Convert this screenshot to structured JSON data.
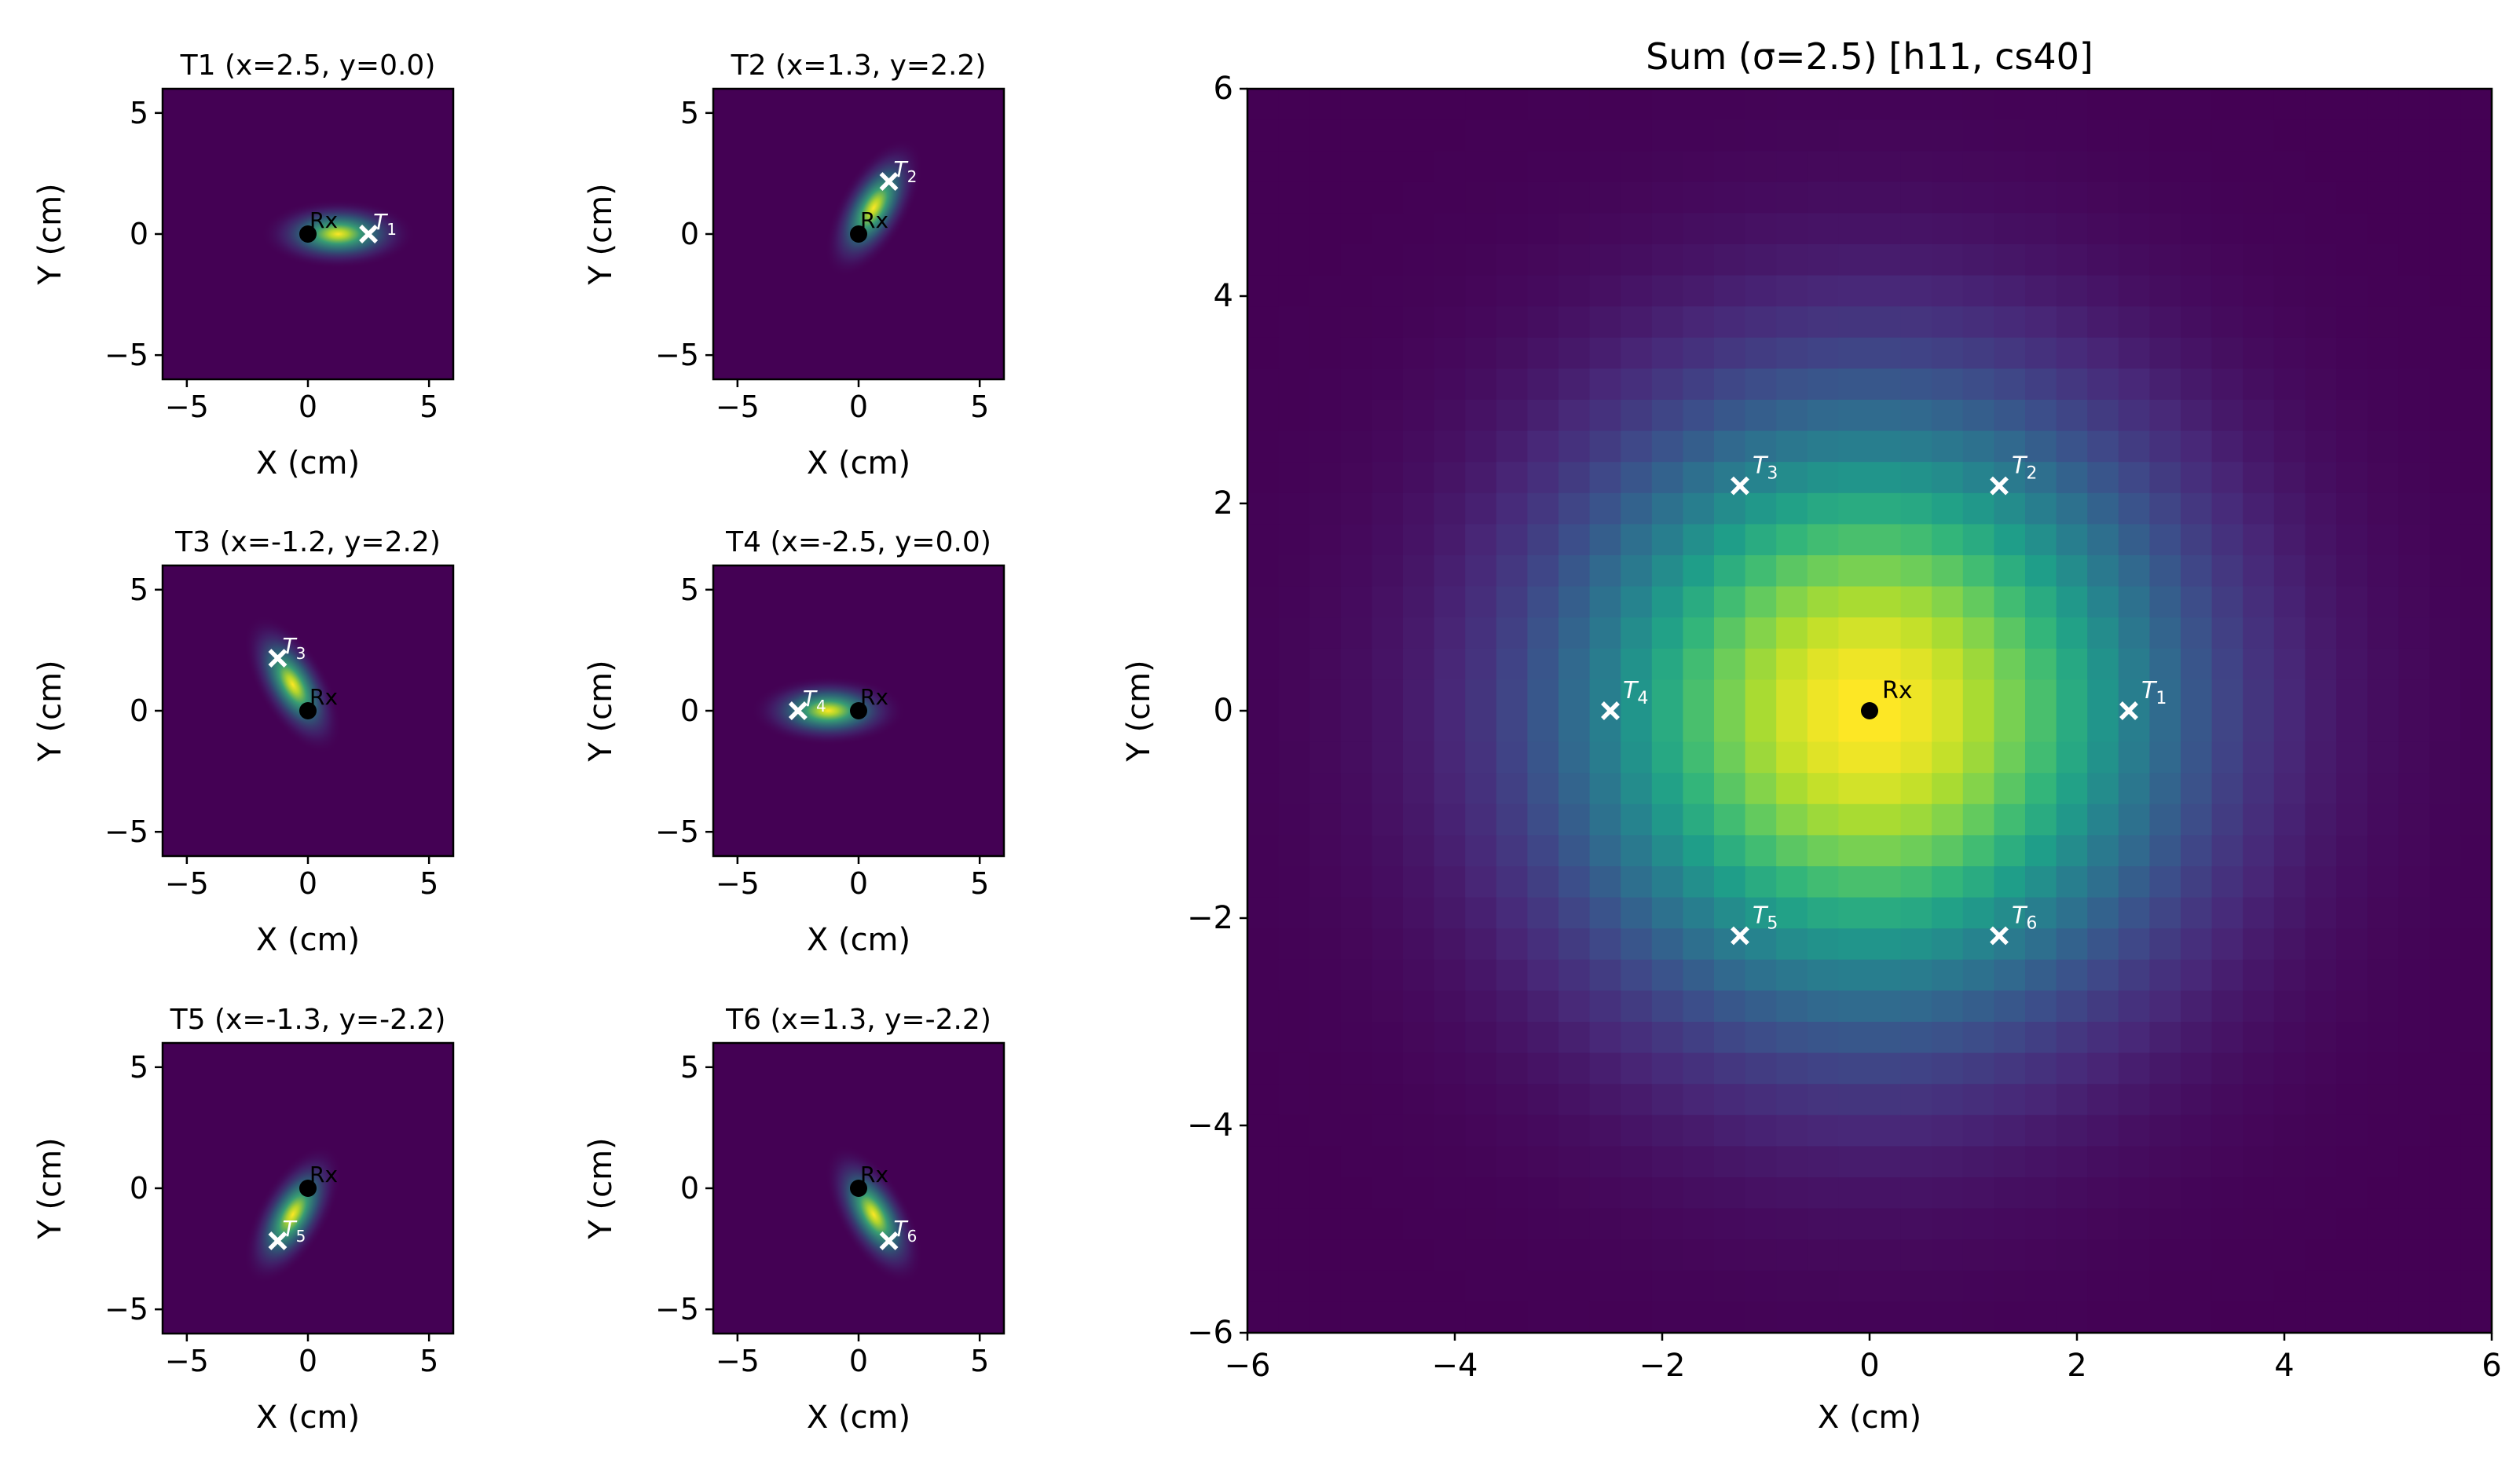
{
  "figure": {
    "background": "#ffffff"
  },
  "chart_data": [
    {
      "type": "heatmap",
      "panel": "T1",
      "title": "T1  (x=2.5, y=0.0)",
      "xlabel": "X (cm)",
      "ylabel": "Y (cm)",
      "xlim": [
        -6,
        6
      ],
      "ylim": [
        -6,
        6
      ],
      "xticks": [
        -5,
        0,
        5
      ],
      "yticks": [
        -5,
        0,
        5
      ],
      "xtick_labels": [
        "−5",
        "0",
        "5"
      ],
      "ytick_labels": [
        "−5",
        "0",
        "5"
      ],
      "colormap": "viridis",
      "rx": {
        "x": 0.0,
        "y": 0.0,
        "label": "Rx"
      },
      "transmitter": {
        "x": 2.5,
        "y": 0.0,
        "label": "T",
        "sub": "1"
      },
      "sigma_along": 1.6,
      "sigma_across": 0.55
    },
    {
      "type": "heatmap",
      "panel": "T2",
      "title": "T2  (x=1.3, y=2.2)",
      "xlabel": "X (cm)",
      "ylabel": "Y (cm)",
      "xlim": [
        -6,
        6
      ],
      "ylim": [
        -6,
        6
      ],
      "xticks": [
        -5,
        0,
        5
      ],
      "yticks": [
        -5,
        0,
        5
      ],
      "xtick_labels": [
        "−5",
        "0",
        "5"
      ],
      "ytick_labels": [
        "−5",
        "0",
        "5"
      ],
      "colormap": "viridis",
      "rx": {
        "x": 0.0,
        "y": 0.0,
        "label": "Rx"
      },
      "transmitter": {
        "x": 1.25,
        "y": 2.17,
        "label": "T",
        "sub": "2"
      },
      "sigma_along": 1.6,
      "sigma_across": 0.55
    },
    {
      "type": "heatmap",
      "panel": "T3",
      "title": "T3  (x=-1.2, y=2.2)",
      "xlabel": "X (cm)",
      "ylabel": "Y (cm)",
      "xlim": [
        -6,
        6
      ],
      "ylim": [
        -6,
        6
      ],
      "xticks": [
        -5,
        0,
        5
      ],
      "yticks": [
        -5,
        0,
        5
      ],
      "xtick_labels": [
        "−5",
        "0",
        "5"
      ],
      "ytick_labels": [
        "−5",
        "0",
        "5"
      ],
      "colormap": "viridis",
      "rx": {
        "x": 0.0,
        "y": 0.0,
        "label": "Rx"
      },
      "transmitter": {
        "x": -1.25,
        "y": 2.17,
        "label": "T",
        "sub": "3"
      },
      "sigma_along": 1.6,
      "sigma_across": 0.55
    },
    {
      "type": "heatmap",
      "panel": "T4",
      "title": "T4  (x=-2.5, y=0.0)",
      "xlabel": "X (cm)",
      "ylabel": "Y (cm)",
      "xlim": [
        -6,
        6
      ],
      "ylim": [
        -6,
        6
      ],
      "xticks": [
        -5,
        0,
        5
      ],
      "yticks": [
        -5,
        0,
        5
      ],
      "xtick_labels": [
        "−5",
        "0",
        "5"
      ],
      "ytick_labels": [
        "−5",
        "0",
        "5"
      ],
      "colormap": "viridis",
      "rx": {
        "x": 0.0,
        "y": 0.0,
        "label": "Rx"
      },
      "transmitter": {
        "x": -2.5,
        "y": 0.0,
        "label": "T",
        "sub": "4"
      },
      "sigma_along": 1.6,
      "sigma_across": 0.55
    },
    {
      "type": "heatmap",
      "panel": "T5",
      "title": "T5  (x=-1.3, y=-2.2)",
      "xlabel": "X (cm)",
      "ylabel": "Y (cm)",
      "xlim": [
        -6,
        6
      ],
      "ylim": [
        -6,
        6
      ],
      "xticks": [
        -5,
        0,
        5
      ],
      "yticks": [
        -5,
        0,
        5
      ],
      "xtick_labels": [
        "−5",
        "0",
        "5"
      ],
      "ytick_labels": [
        "−5",
        "0",
        "5"
      ],
      "colormap": "viridis",
      "rx": {
        "x": 0.0,
        "y": 0.0,
        "label": "Rx"
      },
      "transmitter": {
        "x": -1.25,
        "y": -2.17,
        "label": "T",
        "sub": "5"
      },
      "sigma_along": 1.6,
      "sigma_across": 0.55
    },
    {
      "type": "heatmap",
      "panel": "T6",
      "title": "T6  (x=1.3, y=-2.2)",
      "xlabel": "X (cm)",
      "ylabel": "Y (cm)",
      "xlim": [
        -6,
        6
      ],
      "ylim": [
        -6,
        6
      ],
      "xticks": [
        -5,
        0,
        5
      ],
      "yticks": [
        -5,
        0,
        5
      ],
      "xtick_labels": [
        "−5",
        "0",
        "5"
      ],
      "ytick_labels": [
        "−5",
        "0",
        "5"
      ],
      "colormap": "viridis",
      "rx": {
        "x": 0.0,
        "y": 0.0,
        "label": "Rx"
      },
      "transmitter": {
        "x": 1.25,
        "y": -2.17,
        "label": "T",
        "sub": "6"
      },
      "sigma_along": 1.6,
      "sigma_across": 0.55
    },
    {
      "type": "heatmap",
      "panel": "Sum",
      "title": "Sum (σ=2.5)   [h11, cs40]",
      "xlabel": "X (cm)",
      "ylabel": "Y (cm)",
      "xlim": [
        -6,
        6
      ],
      "ylim": [
        -6,
        6
      ],
      "xticks": [
        -6,
        -4,
        -2,
        0,
        2,
        4,
        6
      ],
      "yticks": [
        -6,
        -4,
        -2,
        0,
        2,
        4,
        6
      ],
      "xtick_labels": [
        "−6",
        "−4",
        "−2",
        "0",
        "2",
        "4",
        "6"
      ],
      "ytick_labels": [
        "−6",
        "−4",
        "−2",
        "0",
        "2",
        "4",
        "6"
      ],
      "colormap": "viridis",
      "grid_cells": 40,
      "sigma": 2.5,
      "rx": {
        "x": 0.0,
        "y": 0.0,
        "label": "Rx"
      },
      "transmitters": [
        {
          "x": 2.5,
          "y": 0.0,
          "label": "T",
          "sub": "1"
        },
        {
          "x": 1.25,
          "y": 2.17,
          "label": "T",
          "sub": "2"
        },
        {
          "x": -1.25,
          "y": 2.17,
          "label": "T",
          "sub": "3"
        },
        {
          "x": -2.5,
          "y": 0.0,
          "label": "T",
          "sub": "4"
        },
        {
          "x": -1.25,
          "y": -2.17,
          "label": "T",
          "sub": "5"
        },
        {
          "x": 1.25,
          "y": -2.17,
          "label": "T",
          "sub": "6"
        }
      ]
    }
  ]
}
